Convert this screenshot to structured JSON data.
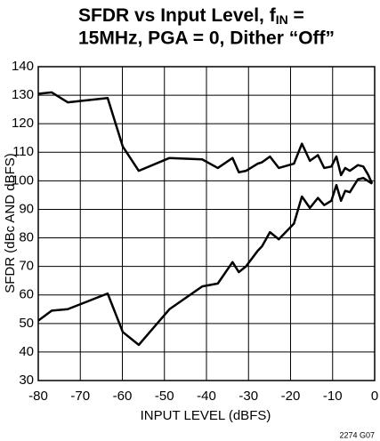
{
  "chart_data": {
    "type": "line",
    "title": [
      "SFDR vs Input Level, f",
      "IN",
      " =",
      "15MHz, PGA = 0, Dither “Off”"
    ],
    "xlabel": "INPUT LEVEL (dBFS)",
    "ylabel": "SFDR (dBc AND dBFS)",
    "note": "2274 G07",
    "xlim": [
      -80,
      0
    ],
    "xticks": [
      -80,
      -70,
      -60,
      -50,
      -40,
      -30,
      -20,
      -10,
      0
    ],
    "ylim": [
      30,
      140
    ],
    "yticks": [
      30,
      40,
      50,
      60,
      70,
      80,
      90,
      100,
      110,
      120,
      130,
      140
    ],
    "grid": true,
    "series": [
      {
        "color": "#000000",
        "x": [
          -80,
          -76.8,
          -73,
          -63.5,
          -59.9,
          -56.1,
          -48.8,
          -41,
          -37.3,
          -33.8,
          -32.3,
          -30.6,
          -27.8,
          -26.8,
          -24.9,
          -22.8,
          -19.2,
          -17.3,
          -15.4,
          -13.5,
          -12,
          -10.3,
          -9.1,
          -8,
          -7,
          -5.9,
          -4,
          -2.7,
          -1.5,
          -0.6
        ],
        "values": [
          130.5,
          131,
          127.5,
          129,
          112,
          103.5,
          108,
          107.5,
          104.5,
          108,
          103,
          103.5,
          106,
          106.5,
          108.5,
          104.5,
          106,
          113,
          107,
          109,
          104.5,
          105,
          108.5,
          102,
          104.5,
          103.5,
          105.5,
          105,
          102,
          99
        ]
      },
      {
        "color": "#000000",
        "x": [
          -80,
          -76.8,
          -73,
          -63.5,
          -59.9,
          -56.1,
          -48.8,
          -41,
          -37.3,
          -33.8,
          -32.3,
          -30.6,
          -27.8,
          -26.8,
          -24.9,
          -22.8,
          -19.2,
          -17.3,
          -15.4,
          -13.5,
          -12,
          -10.3,
          -9.1,
          -8,
          -7,
          -5.9,
          -4,
          -2.7,
          -0.6
        ],
        "values": [
          51,
          54.5,
          55,
          60.5,
          47,
          42.5,
          55,
          63,
          64,
          71.5,
          68,
          70,
          75.5,
          77,
          82,
          79.5,
          85,
          94.5,
          90.5,
          94,
          91.5,
          93,
          98.5,
          93,
          96.5,
          96,
          100.5,
          101,
          99
        ]
      }
    ]
  }
}
